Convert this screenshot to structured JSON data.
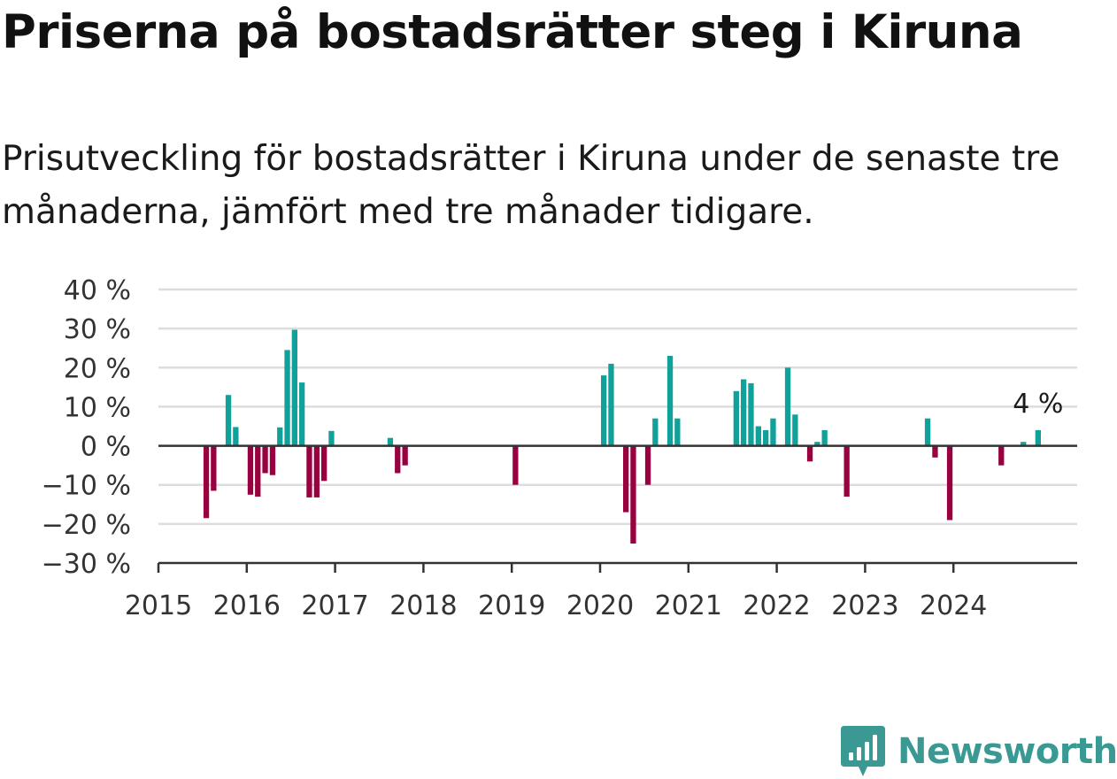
{
  "chart_data": {
    "type": "bar",
    "title": "Priserna på bostadsrätter steg i Kiruna",
    "subtitle": "Prisutveckling för bostadsrätter i Kiruna under de senaste tre månaderna, jämfört med tre månader tidigare.",
    "xlabel": "",
    "ylabel": "",
    "ylim": [
      -30,
      40
    ],
    "yticks": [
      40,
      30,
      20,
      10,
      0,
      -10,
      -20,
      -30
    ],
    "ytick_labels": [
      "40 %",
      "30 %",
      "20 %",
      "10 %",
      "0 %",
      "−10 %",
      "−20 %",
      "−30 %"
    ],
    "xticks": [
      "2015",
      "2016",
      "2017",
      "2018",
      "2019",
      "2020",
      "2021",
      "2022",
      "2023",
      "2024"
    ],
    "grid": true,
    "legend": "none",
    "positive_color": "#10a19a",
    "negative_color": "#99003f",
    "baseline_color": "#333333",
    "grid_color": "#dddddd",
    "annotation": {
      "date": "2024-12",
      "label": "4 %"
    },
    "x": [
      "2015-07",
      "2015-08",
      "2015-10",
      "2015-11",
      "2016-01",
      "2016-02",
      "2016-03",
      "2016-04",
      "2016-05",
      "2016-06",
      "2016-07",
      "2016-08",
      "2016-09",
      "2016-10",
      "2016-11",
      "2016-12",
      "2017-08",
      "2017-09",
      "2017-10",
      "2019-01",
      "2020-01",
      "2020-02",
      "2020-04",
      "2020-05",
      "2020-07",
      "2020-08",
      "2020-10",
      "2020-11",
      "2021-07",
      "2021-08",
      "2021-09",
      "2021-10",
      "2021-11",
      "2021-12",
      "2022-02",
      "2022-03",
      "2022-05",
      "2022-06",
      "2022-07",
      "2022-10",
      "2023-09",
      "2023-10",
      "2023-12",
      "2024-07",
      "2024-10",
      "2024-12"
    ],
    "values": [
      -18.5,
      -11.5,
      13,
      4.8,
      -12.5,
      -13,
      -7,
      -7.5,
      4.7,
      24.5,
      29.7,
      16.2,
      -13.2,
      -13.2,
      -9,
      3.8,
      2,
      -7,
      -5,
      -10,
      18,
      21,
      -17,
      -25,
      -10,
      7,
      23,
      7,
      14,
      17,
      16,
      5,
      4,
      7,
      20,
      8,
      -4,
      1,
      4,
      -13,
      7,
      -3,
      -19,
      -5,
      1,
      4
    ]
  },
  "brand": {
    "name": "Newsworthy",
    "color": "#3a9a93"
  }
}
